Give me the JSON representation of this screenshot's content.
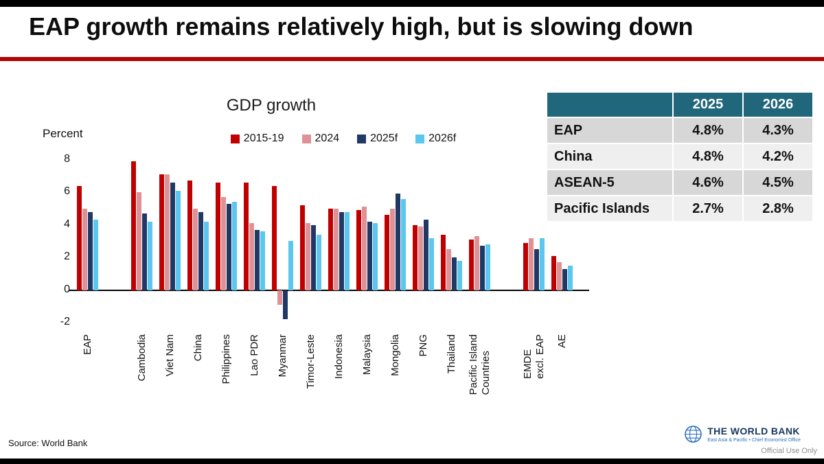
{
  "slide": {
    "title": "EAP growth remains relatively high, but is slowing down",
    "source_note": "Source: World Bank",
    "classification": "Official Use Only",
    "logo": {
      "name": "THE WORLD BANK",
      "subtitle": "East Asia & Pacific • Chief Economist Office"
    }
  },
  "colors": {
    "accent_red": "#b00606",
    "table_header_bg": "#21677b",
    "table_row_gray": "#d7d7d7",
    "table_row_light": "#efefef",
    "logo_navy": "#16365c",
    "logo_blue": "#2a6ebb",
    "classification_gray": "#8f8f8f"
  },
  "chart_data": {
    "type": "bar",
    "title": "GDP growth",
    "ylabel": "Percent",
    "ylim": [
      -2,
      8
    ],
    "yticks": [
      8,
      6,
      4,
      2,
      0,
      -2
    ],
    "grid": false,
    "legend_position": "top",
    "categories": [
      "EAP",
      "Cambodia",
      "Viet Nam",
      "China",
      "Philippines",
      "Lao PDR",
      "Myanmar",
      "Timor-Leste",
      "Indonesia",
      "Malaysia",
      "Mongolia",
      "PNG",
      "Thailand",
      "Pacific Island\nCountries",
      "EMDE\nexcl. EAP",
      "AE"
    ],
    "section_gaps_after": [
      "EAP",
      "Pacific Island\nCountries"
    ],
    "series": [
      {
        "name": "2015-19",
        "color": "#c00000",
        "values": [
          6.4,
          7.9,
          7.1,
          6.7,
          6.6,
          6.6,
          6.4,
          5.2,
          5.0,
          4.9,
          4.6,
          4.0,
          3.4,
          3.1,
          2.9,
          2.1
        ]
      },
      {
        "name": "2024",
        "color": "#df9295",
        "values": [
          5.0,
          6.0,
          7.1,
          5.0,
          5.7,
          4.1,
          -0.9,
          4.1,
          5.0,
          5.1,
          5.0,
          3.9,
          2.5,
          3.3,
          3.2,
          1.7
        ]
      },
      {
        "name": "2025f",
        "color": "#1f3864",
        "values": [
          4.8,
          4.7,
          6.6,
          4.8,
          5.3,
          3.7,
          -1.8,
          4.0,
          4.8,
          4.2,
          5.9,
          4.3,
          2.0,
          2.7,
          2.5,
          1.3
        ]
      },
      {
        "name": "2026f",
        "color": "#5bc6ee",
        "values": [
          4.3,
          4.2,
          6.1,
          4.2,
          5.4,
          3.6,
          3.0,
          3.4,
          4.8,
          4.1,
          5.6,
          3.2,
          1.8,
          2.8,
          3.2,
          1.5
        ]
      }
    ]
  },
  "table": {
    "headers": [
      "",
      "2025",
      "2026"
    ],
    "rows": [
      [
        "EAP",
        "4.8%",
        "4.3%"
      ],
      [
        "China",
        "4.8%",
        "4.2%"
      ],
      [
        "ASEAN-5",
        "4.6%",
        "4.5%"
      ],
      [
        "Pacific Islands",
        "2.7%",
        "2.8%"
      ]
    ]
  }
}
